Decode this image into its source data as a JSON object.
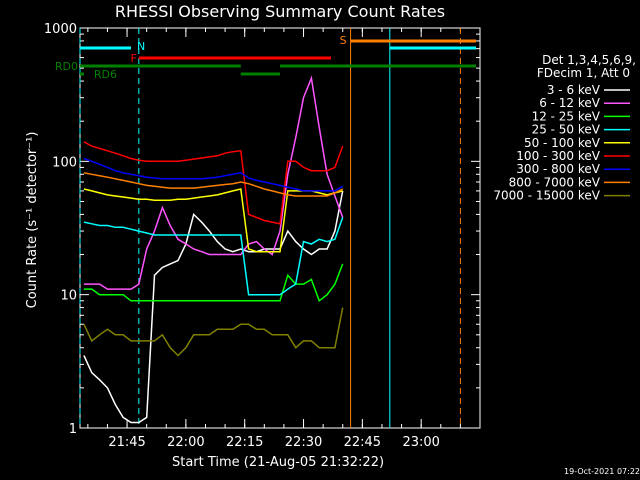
{
  "chart_data": {
    "type": "line",
    "title": "RHESSI Observing Summary Count Rates",
    "xlabel": "Start Time (21-Aug-05 21:32:22)",
    "ylabel": "Count Rate (s⁻¹ detector⁻¹)",
    "y_scale": "log",
    "ylim": [
      1,
      1000
    ],
    "xlim": [
      "21:33",
      "23:15"
    ],
    "x_ticks": [
      "21:45",
      "22:00",
      "22:15",
      "22:30",
      "22:45",
      "23:00"
    ],
    "y_ticks": [
      "1",
      "10",
      "100",
      "1000"
    ],
    "grid": false,
    "legend_position": "right",
    "legend_header": [
      "Det 1,3,4,5,6,9,",
      "FDecim 1, Att 0"
    ],
    "timestamp": "19-Oct-2021 07:22",
    "series": [
      {
        "name": "3 - 6 keV",
        "color": "#ffffff",
        "x": [
          "21:34",
          "21:36",
          "21:38",
          "21:40",
          "21:42",
          "21:44",
          "21:46",
          "21:48",
          "21:50",
          "21:52",
          "21:54",
          "21:56",
          "21:58",
          "22:00",
          "22:02",
          "22:04",
          "22:06",
          "22:08",
          "22:10",
          "22:12",
          "22:14",
          "22:16",
          "22:18",
          "22:20",
          "22:22",
          "22:24",
          "22:26",
          "22:28",
          "22:30",
          "22:32",
          "22:34",
          "22:36",
          "22:38",
          "22:40"
        ],
        "values": [
          3.5,
          2.6,
          2.3,
          2.0,
          1.5,
          1.2,
          1.1,
          1.1,
          1.2,
          14,
          16,
          17,
          18,
          24,
          40,
          35,
          30,
          25,
          22,
          21,
          22,
          21,
          21,
          22,
          22,
          22,
          30,
          25,
          22,
          20,
          22,
          22,
          30,
          60
        ]
      },
      {
        "name": "6 - 12 keV",
        "color": "#ff55ff",
        "x": [
          "21:34",
          "21:36",
          "21:38",
          "21:40",
          "21:42",
          "21:44",
          "21:46",
          "21:48",
          "21:50",
          "21:52",
          "21:54",
          "21:56",
          "21:58",
          "22:00",
          "22:02",
          "22:04",
          "22:06",
          "22:08",
          "22:10",
          "22:12",
          "22:14",
          "22:16",
          "22:18",
          "22:20",
          "22:22",
          "22:24",
          "22:26",
          "22:28",
          "22:30",
          "22:32",
          "22:34",
          "22:36",
          "22:38",
          "22:40"
        ],
        "values": [
          12,
          12,
          12,
          11,
          11,
          11,
          11,
          12,
          22,
          30,
          45,
          33,
          26,
          24,
          22,
          21,
          20,
          20,
          20,
          20,
          20,
          24,
          25,
          22,
          20,
          30,
          80,
          150,
          300,
          420,
          180,
          80,
          55,
          38
        ]
      },
      {
        "name": "12 - 25 keV",
        "color": "#00ff00",
        "x": [
          "21:34",
          "21:36",
          "21:38",
          "21:40",
          "21:42",
          "21:44",
          "21:46",
          "21:48",
          "21:50",
          "21:52",
          "21:54",
          "21:56",
          "21:58",
          "22:00",
          "22:02",
          "22:04",
          "22:06",
          "22:08",
          "22:10",
          "22:12",
          "22:14",
          "22:16",
          "22:18",
          "22:20",
          "22:22",
          "22:24",
          "22:26",
          "22:28",
          "22:30",
          "22:32",
          "22:34",
          "22:36",
          "22:38",
          "22:40"
        ],
        "values": [
          11,
          11,
          10,
          10,
          10,
          10,
          9,
          9,
          9,
          9,
          9,
          9,
          9,
          9,
          9,
          9,
          9,
          9,
          9,
          9,
          9,
          9,
          9,
          9,
          9,
          9,
          14,
          12,
          12,
          13,
          9,
          10,
          12,
          17
        ]
      },
      {
        "name": "25 - 50 keV",
        "color": "#00ffff",
        "x": [
          "21:34",
          "21:36",
          "21:38",
          "21:40",
          "21:42",
          "21:44",
          "21:46",
          "21:48",
          "21:50",
          "21:52",
          "21:54",
          "21:56",
          "21:58",
          "22:00",
          "22:02",
          "22:04",
          "22:06",
          "22:08",
          "22:10",
          "22:12",
          "22:14",
          "22:16",
          "22:18",
          "22:20",
          "22:22",
          "22:24",
          "22:26",
          "22:28",
          "22:30",
          "22:32",
          "22:34",
          "22:36",
          "22:38",
          "22:40"
        ],
        "values": [
          35,
          34,
          33,
          33,
          32,
          32,
          31,
          30,
          29,
          28,
          28,
          28,
          28,
          28,
          28,
          28,
          28,
          28,
          28,
          28,
          28,
          10,
          10,
          10,
          10,
          10,
          11,
          12,
          25,
          24,
          26,
          25,
          26,
          38
        ]
      },
      {
        "name": "50 - 100 keV",
        "color": "#ffff00",
        "x": [
          "21:34",
          "21:36",
          "21:38",
          "21:40",
          "21:42",
          "21:44",
          "21:46",
          "21:48",
          "21:50",
          "21:52",
          "21:54",
          "21:56",
          "21:58",
          "22:00",
          "22:02",
          "22:04",
          "22:06",
          "22:08",
          "22:10",
          "22:12",
          "22:14",
          "22:16",
          "22:18",
          "22:20",
          "22:22",
          "22:24",
          "22:26",
          "22:28",
          "22:30",
          "22:32",
          "22:34",
          "22:36",
          "22:38",
          "22:40"
        ],
        "values": [
          62,
          60,
          58,
          56,
          55,
          54,
          53,
          52,
          52,
          51,
          51,
          51,
          52,
          52,
          53,
          54,
          55,
          56,
          58,
          60,
          62,
          22,
          21,
          21,
          21,
          21,
          60,
          60,
          60,
          60,
          58,
          56,
          58,
          60
        ]
      },
      {
        "name": "100 - 300 keV",
        "color": "#ff0000",
        "x": [
          "21:34",
          "21:36",
          "21:38",
          "21:40",
          "21:42",
          "21:44",
          "21:46",
          "21:48",
          "21:50",
          "21:52",
          "21:54",
          "21:56",
          "21:58",
          "22:00",
          "22:02",
          "22:04",
          "22:06",
          "22:08",
          "22:10",
          "22:12",
          "22:14",
          "22:16",
          "22:18",
          "22:20",
          "22:22",
          "22:24",
          "22:26",
          "22:28",
          "22:30",
          "22:32",
          "22:34",
          "22:36",
          "22:38",
          "22:40"
        ],
        "values": [
          140,
          130,
          125,
          120,
          115,
          110,
          105,
          102,
          100,
          100,
          100,
          100,
          100,
          102,
          104,
          106,
          108,
          110,
          115,
          118,
          120,
          40,
          38,
          36,
          35,
          34,
          100,
          100,
          90,
          85,
          85,
          85,
          90,
          130
        ]
      },
      {
        "name": "300 - 800 keV",
        "color": "#0000ff",
        "x": [
          "21:34",
          "21:36",
          "21:38",
          "21:40",
          "21:42",
          "21:44",
          "21:46",
          "21:48",
          "21:50",
          "21:52",
          "21:54",
          "21:56",
          "21:58",
          "22:00",
          "22:02",
          "22:04",
          "22:06",
          "22:08",
          "22:10",
          "22:12",
          "22:14",
          "22:16",
          "22:18",
          "22:20",
          "22:22",
          "22:24",
          "22:26",
          "22:28",
          "22:30",
          "22:32",
          "22:34",
          "22:36",
          "22:38",
          "22:40"
        ],
        "values": [
          105,
          100,
          95,
          90,
          85,
          82,
          80,
          78,
          76,
          75,
          74,
          74,
          74,
          74,
          74,
          74,
          75,
          76,
          78,
          80,
          82,
          75,
          72,
          70,
          68,
          66,
          64,
          62,
          60,
          60,
          60,
          60,
          60,
          65
        ]
      },
      {
        "name": "800 - 7000 keV",
        "color": "#ff8000",
        "x": [
          "21:34",
          "21:36",
          "21:38",
          "21:40",
          "21:42",
          "21:44",
          "21:46",
          "21:48",
          "21:50",
          "21:52",
          "21:54",
          "21:56",
          "21:58",
          "22:00",
          "22:02",
          "22:04",
          "22:06",
          "22:08",
          "22:10",
          "22:12",
          "22:14",
          "22:16",
          "22:18",
          "22:20",
          "22:22",
          "22:24",
          "22:26",
          "22:28",
          "22:30",
          "22:32",
          "22:34",
          "22:36",
          "22:38",
          "22:40"
        ],
        "values": [
          82,
          80,
          78,
          76,
          74,
          72,
          70,
          68,
          66,
          65,
          64,
          63,
          63,
          63,
          63,
          64,
          65,
          66,
          67,
          68,
          70,
          68,
          65,
          62,
          60,
          58,
          56,
          55,
          55,
          55,
          55,
          55,
          58,
          62
        ]
      },
      {
        "name": "7000 - 15000 keV",
        "color": "#808000",
        "x": [
          "21:34",
          "21:36",
          "21:38",
          "21:40",
          "21:42",
          "21:44",
          "21:46",
          "21:48",
          "21:50",
          "21:52",
          "21:54",
          "21:56",
          "21:58",
          "22:00",
          "22:02",
          "22:04",
          "22:06",
          "22:08",
          "22:10",
          "22:12",
          "22:14",
          "22:16",
          "22:18",
          "22:20",
          "22:22",
          "22:24",
          "22:26",
          "22:28",
          "22:30",
          "22:32",
          "22:34",
          "22:36",
          "22:38",
          "22:40"
        ],
        "values": [
          6,
          4.5,
          5,
          5.5,
          5,
          5,
          4.5,
          4.5,
          4.5,
          4.5,
          5,
          4,
          3.5,
          4,
          5,
          5,
          5,
          5.5,
          5.5,
          5.5,
          6,
          6,
          5.5,
          5.5,
          5,
          5,
          5,
          4,
          4.5,
          4.5,
          4,
          4,
          4,
          8
        ]
      }
    ],
    "flag_bars": [
      {
        "label": "N",
        "color": "#00ffff",
        "segments": [
          [
            "21:33",
            "21:46"
          ],
          [
            "22:52",
            "23:14"
          ]
        ]
      },
      {
        "label": "S",
        "color": "#ff8000",
        "segments": [
          [
            "22:42",
            "23:14"
          ]
        ]
      },
      {
        "label": "F",
        "color": "#ff0000",
        "segments": [
          [
            "21:48",
            "22:37"
          ]
        ]
      },
      {
        "label": "RD0",
        "color": "#008000",
        "segments": [
          [
            "21:33",
            "22:14"
          ],
          [
            "22:24",
            "23:14"
          ]
        ]
      },
      {
        "label": "",
        "color": "#008000",
        "segments": [
          [
            "22:14",
            "22:24"
          ]
        ]
      },
      {
        "label": "RD6",
        "color": "#008000",
        "segments": [
          [
            "21:33",
            "21:34"
          ]
        ]
      }
    ],
    "markers": [
      {
        "time": "21:33",
        "color": "#00ffff",
        "style": "dashed"
      },
      {
        "time": "21:48",
        "color": "#00ffff",
        "style": "dashed"
      },
      {
        "time": "22:42",
        "color": "#ff8000",
        "style": "solid"
      },
      {
        "time": "22:52",
        "color": "#00ffff",
        "style": "solid"
      },
      {
        "time": "23:10",
        "color": "#ff8000",
        "style": "dashed"
      }
    ]
  }
}
